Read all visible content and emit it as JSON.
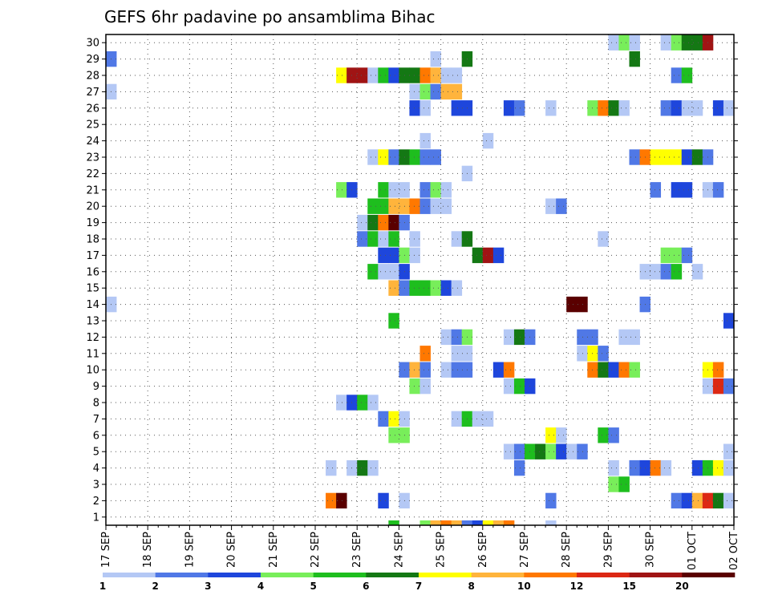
{
  "chart_data": {
    "type": "heatmap",
    "title": "GEFS 6hr padavine po ansamblima Bihac",
    "xlabel": "",
    "ylabel": "",
    "y_ticks": [
      1,
      2,
      3,
      4,
      5,
      6,
      7,
      8,
      9,
      10,
      11,
      12,
      13,
      14,
      15,
      16,
      17,
      18,
      19,
      20,
      21,
      22,
      23,
      24,
      25,
      26,
      27,
      28,
      29,
      30
    ],
    "x_ticks": [
      "17 SEP",
      "18 SEP",
      "19 SEP",
      "20 SEP",
      "21 SEP",
      "22 SEP",
      "23 SEP",
      "24 SEP",
      "25 SEP",
      "26 SEP",
      "27 SEP",
      "28 SEP",
      "29 SEP",
      "30 SEP",
      "01 OCT",
      "02 OCT"
    ],
    "xlim": [
      0,
      60
    ],
    "ylim": [
      0,
      30
    ],
    "grid": true,
    "colorbar": {
      "boundaries": [
        1,
        2,
        3,
        4,
        5,
        6,
        7,
        8,
        10,
        12,
        15,
        20
      ],
      "colors": [
        "#b4c8f5",
        "#5078e6",
        "#1e46dc",
        "#78ee5a",
        "#1ebe1e",
        "#147814",
        "#ffff00",
        "#ffb43c",
        "#ff7800",
        "#dc2814",
        "#a01414",
        "#5a0000"
      ]
    },
    "cells": [
      [
        30,
        48,
        1
      ],
      [
        30,
        49,
        4
      ],
      [
        30,
        50,
        1
      ],
      [
        30,
        53,
        1
      ],
      [
        30,
        54,
        4
      ],
      [
        30,
        55,
        6
      ],
      [
        30,
        56,
        6
      ],
      [
        30,
        57,
        11
      ],
      [
        29,
        0,
        2
      ],
      [
        29,
        31,
        1
      ],
      [
        29,
        34,
        6
      ],
      [
        29,
        50,
        6
      ],
      [
        28,
        22,
        7
      ],
      [
        28,
        23,
        11
      ],
      [
        28,
        24,
        11
      ],
      [
        28,
        25,
        1
      ],
      [
        28,
        26,
        5
      ],
      [
        28,
        27,
        3
      ],
      [
        28,
        28,
        6
      ],
      [
        28,
        29,
        6
      ],
      [
        28,
        30,
        9
      ],
      [
        28,
        31,
        8
      ],
      [
        28,
        32,
        1
      ],
      [
        28,
        33,
        1
      ],
      [
        28,
        54,
        2
      ],
      [
        28,
        55,
        5
      ],
      [
        27,
        0,
        1
      ],
      [
        27,
        29,
        1
      ],
      [
        27,
        30,
        4
      ],
      [
        27,
        31,
        2
      ],
      [
        27,
        32,
        8
      ],
      [
        27,
        33,
        8
      ],
      [
        26,
        29,
        3
      ],
      [
        26,
        30,
        1
      ],
      [
        26,
        33,
        3
      ],
      [
        26,
        34,
        3
      ],
      [
        26,
        38,
        3
      ],
      [
        26,
        39,
        2
      ],
      [
        26,
        42,
        1
      ],
      [
        26,
        46,
        4
      ],
      [
        26,
        47,
        9
      ],
      [
        26,
        48,
        6
      ],
      [
        26,
        49,
        1
      ],
      [
        26,
        53,
        2
      ],
      [
        26,
        54,
        3
      ],
      [
        26,
        55,
        1
      ],
      [
        26,
        56,
        1
      ],
      [
        26,
        58,
        3
      ],
      [
        26,
        59,
        1
      ],
      [
        24,
        30,
        1
      ],
      [
        24,
        36,
        1
      ],
      [
        23,
        25,
        1
      ],
      [
        23,
        26,
        7
      ],
      [
        23,
        27,
        2
      ],
      [
        23,
        28,
        6
      ],
      [
        23,
        29,
        5
      ],
      [
        23,
        30,
        2
      ],
      [
        23,
        31,
        2
      ],
      [
        23,
        50,
        2
      ],
      [
        23,
        51,
        9
      ],
      [
        23,
        52,
        7
      ],
      [
        23,
        53,
        7
      ],
      [
        23,
        54,
        7
      ],
      [
        23,
        55,
        3
      ],
      [
        23,
        56,
        6
      ],
      [
        23,
        57,
        2
      ],
      [
        22,
        34,
        1
      ],
      [
        21,
        22,
        4
      ],
      [
        21,
        23,
        3
      ],
      [
        21,
        26,
        5
      ],
      [
        21,
        27,
        1
      ],
      [
        21,
        28,
        1
      ],
      [
        21,
        30,
        2
      ],
      [
        21,
        31,
        4
      ],
      [
        21,
        32,
        1
      ],
      [
        21,
        52,
        2
      ],
      [
        21,
        54,
        3
      ],
      [
        21,
        55,
        3
      ],
      [
        21,
        57,
        1
      ],
      [
        21,
        58,
        2
      ],
      [
        20,
        25,
        5
      ],
      [
        20,
        26,
        5
      ],
      [
        20,
        27,
        8
      ],
      [
        20,
        28,
        8
      ],
      [
        20,
        29,
        9
      ],
      [
        20,
        30,
        2
      ],
      [
        20,
        31,
        1
      ],
      [
        20,
        32,
        1
      ],
      [
        20,
        42,
        1
      ],
      [
        20,
        43,
        2
      ],
      [
        19,
        24,
        1
      ],
      [
        19,
        25,
        6
      ],
      [
        19,
        26,
        9
      ],
      [
        19,
        27,
        12
      ],
      [
        19,
        28,
        2
      ],
      [
        18,
        24,
        2
      ],
      [
        18,
        25,
        5
      ],
      [
        18,
        26,
        1
      ],
      [
        18,
        27,
        5
      ],
      [
        18,
        29,
        1
      ],
      [
        18,
        33,
        1
      ],
      [
        18,
        34,
        6
      ],
      [
        18,
        47,
        1
      ],
      [
        17,
        26,
        3
      ],
      [
        17,
        27,
        3
      ],
      [
        17,
        28,
        4
      ],
      [
        17,
        29,
        1
      ],
      [
        17,
        35,
        6
      ],
      [
        17,
        36,
        11
      ],
      [
        17,
        37,
        3
      ],
      [
        17,
        53,
        4
      ],
      [
        17,
        54,
        4
      ],
      [
        17,
        55,
        2
      ],
      [
        16,
        25,
        5
      ],
      [
        16,
        26,
        1
      ],
      [
        16,
        27,
        1
      ],
      [
        16,
        28,
        3
      ],
      [
        16,
        51,
        1
      ],
      [
        16,
        52,
        1
      ],
      [
        16,
        53,
        2
      ],
      [
        16,
        54,
        5
      ],
      [
        16,
        56,
        1
      ],
      [
        15,
        27,
        8
      ],
      [
        15,
        28,
        2
      ],
      [
        15,
        29,
        5
      ],
      [
        15,
        30,
        5
      ],
      [
        15,
        31,
        4
      ],
      [
        15,
        32,
        3
      ],
      [
        15,
        33,
        1
      ],
      [
        14,
        0,
        1
      ],
      [
        14,
        44,
        12
      ],
      [
        14,
        45,
        12
      ],
      [
        14,
        51,
        2
      ],
      [
        13,
        27,
        5
      ],
      [
        13,
        59,
        3
      ],
      [
        12,
        32,
        1
      ],
      [
        12,
        33,
        2
      ],
      [
        12,
        34,
        4
      ],
      [
        12,
        38,
        1
      ],
      [
        12,
        39,
        6
      ],
      [
        12,
        40,
        2
      ],
      [
        12,
        45,
        2
      ],
      [
        12,
        46,
        2
      ],
      [
        12,
        49,
        1
      ],
      [
        12,
        50,
        1
      ],
      [
        11,
        30,
        9
      ],
      [
        11,
        33,
        1
      ],
      [
        11,
        34,
        1
      ],
      [
        11,
        45,
        1
      ],
      [
        11,
        46,
        7
      ],
      [
        11,
        47,
        2
      ],
      [
        10,
        28,
        2
      ],
      [
        10,
        29,
        8
      ],
      [
        10,
        30,
        2
      ],
      [
        10,
        32,
        1
      ],
      [
        10,
        33,
        2
      ],
      [
        10,
        34,
        2
      ],
      [
        10,
        37,
        3
      ],
      [
        10,
        38,
        9
      ],
      [
        10,
        46,
        9
      ],
      [
        10,
        47,
        6
      ],
      [
        10,
        48,
        3
      ],
      [
        10,
        49,
        9
      ],
      [
        10,
        50,
        4
      ],
      [
        10,
        57,
        7
      ],
      [
        10,
        58,
        9
      ],
      [
        9,
        29,
        4
      ],
      [
        9,
        30,
        1
      ],
      [
        9,
        38,
        1
      ],
      [
        9,
        39,
        5
      ],
      [
        9,
        40,
        3
      ],
      [
        9,
        57,
        1
      ],
      [
        9,
        58,
        10
      ],
      [
        9,
        59,
        2
      ],
      [
        8,
        22,
        1
      ],
      [
        8,
        23,
        3
      ],
      [
        8,
        24,
        5
      ],
      [
        8,
        25,
        1
      ],
      [
        7,
        26,
        2
      ],
      [
        7,
        27,
        7
      ],
      [
        7,
        28,
        1
      ],
      [
        7,
        33,
        1
      ],
      [
        7,
        34,
        5
      ],
      [
        7,
        35,
        1
      ],
      [
        7,
        36,
        1
      ],
      [
        6,
        27,
        4
      ],
      [
        6,
        28,
        4
      ],
      [
        6,
        42,
        7
      ],
      [
        6,
        43,
        1
      ],
      [
        6,
        47,
        5
      ],
      [
        6,
        48,
        2
      ],
      [
        5,
        38,
        1
      ],
      [
        5,
        39,
        2
      ],
      [
        5,
        40,
        5
      ],
      [
        5,
        41,
        6
      ],
      [
        5,
        42,
        4
      ],
      [
        5,
        43,
        3
      ],
      [
        5,
        44,
        1
      ],
      [
        5,
        45,
        2
      ],
      [
        5,
        59,
        1
      ],
      [
        4,
        21,
        1
      ],
      [
        4,
        23,
        1
      ],
      [
        4,
        24,
        6
      ],
      [
        4,
        25,
        1
      ],
      [
        4,
        39,
        2
      ],
      [
        4,
        48,
        1
      ],
      [
        4,
        50,
        2
      ],
      [
        4,
        51,
        3
      ],
      [
        4,
        52,
        9
      ],
      [
        4,
        53,
        1
      ],
      [
        4,
        56,
        3
      ],
      [
        4,
        57,
        5
      ],
      [
        4,
        58,
        7
      ],
      [
        4,
        59,
        1
      ],
      [
        3,
        48,
        4
      ],
      [
        3,
        49,
        5
      ],
      [
        2,
        21,
        9
      ],
      [
        2,
        22,
        12
      ],
      [
        2,
        26,
        3
      ],
      [
        2,
        28,
        1
      ],
      [
        2,
        42,
        2
      ],
      [
        2,
        54,
        2
      ],
      [
        2,
        55,
        3
      ],
      [
        2,
        56,
        8
      ],
      [
        2,
        57,
        10
      ],
      [
        2,
        58,
        6
      ],
      [
        2,
        59,
        1
      ]
    ],
    "bottom_strip": [
      [
        27,
        5
      ],
      [
        30,
        4
      ],
      [
        31,
        8
      ],
      [
        32,
        9
      ],
      [
        33,
        8
      ],
      [
        34,
        2
      ],
      [
        35,
        3
      ],
      [
        36,
        7
      ],
      [
        37,
        8
      ],
      [
        38,
        9
      ],
      [
        42,
        1
      ]
    ]
  },
  "colorbar_labels": [
    "1",
    "2",
    "3",
    "4",
    "5",
    "6",
    "7",
    "8",
    "10",
    "12",
    "15",
    "20"
  ]
}
